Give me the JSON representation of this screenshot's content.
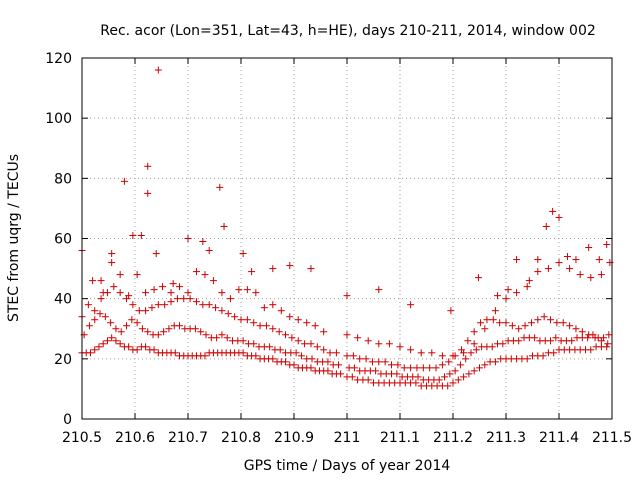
{
  "chart_data": {
    "type": "scatter",
    "title": "Rec. acor (Lon=351, Lat=43, h=HE), days 210-211, 2014, window 002",
    "xlabel": "GPS time / Days of year 2014",
    "ylabel": "STEC from uqrg / TECUs",
    "xlim": [
      210.5,
      211.5
    ],
    "ylim": [
      0,
      120
    ],
    "x_ticks": [
      210.5,
      210.6,
      210.7,
      210.8,
      210.9,
      211.0,
      211.1,
      211.2,
      211.3,
      211.4,
      211.5
    ],
    "x_tick_labels": [
      "210.5",
      "210.6",
      "210.7",
      "210.8",
      "210.9",
      "211",
      "211.1",
      "211.2",
      "211.3",
      "211.4",
      "211.5"
    ],
    "y_ticks": [
      0,
      20,
      40,
      60,
      80,
      100,
      120
    ],
    "y_tick_labels": [
      "0",
      "20",
      "40",
      "60",
      "80",
      "100",
      "120"
    ],
    "grid": true,
    "legend": "none",
    "marker_color": "#cc0000",
    "series": [
      {
        "x": [
          210.5,
          210.508,
          210.516,
          210.524,
          210.532,
          210.54,
          210.548,
          210.556,
          210.564,
          210.572,
          210.58,
          210.588,
          210.596,
          210.604,
          210.612,
          210.62,
          210.628,
          210.636,
          210.644,
          210.652,
          210.66,
          210.668,
          210.676,
          210.684,
          210.692,
          210.7,
          210.708,
          210.716,
          210.724,
          210.732,
          210.74,
          210.748,
          210.756,
          210.764,
          210.772,
          210.78,
          210.788,
          210.796,
          210.804,
          210.812,
          210.82,
          210.828,
          210.836,
          210.844,
          210.852,
          210.86,
          210.868,
          210.876,
          210.884,
          210.892,
          210.9,
          210.908,
          210.916,
          210.924,
          210.932,
          210.94,
          210.948,
          210.956,
          210.964,
          210.972,
          210.98,
          210.988,
          211.0,
          211.01,
          211.02,
          211.03,
          211.04,
          211.05,
          211.06,
          211.07,
          211.08,
          211.09,
          211.1,
          211.11,
          211.12,
          211.13,
          211.14,
          211.15,
          211.16,
          211.17,
          211.18,
          211.19,
          211.2,
          211.21,
          211.22,
          211.23,
          211.24,
          211.25,
          211.26,
          211.27,
          211.28,
          211.29,
          211.3,
          211.31,
          211.32,
          211.33,
          211.34,
          211.35,
          211.36,
          211.37,
          211.38,
          211.39,
          211.4,
          211.41,
          211.42,
          211.43,
          211.44,
          211.45,
          211.46,
          211.47,
          211.48,
          211.49
        ],
        "y": [
          22,
          22,
          22,
          23,
          24,
          25,
          26,
          27,
          26,
          25,
          24,
          24,
          23,
          23,
          24,
          24,
          23,
          23,
          22,
          22,
          22,
          22,
          22,
          21,
          21,
          21,
          21,
          21,
          21,
          21,
          22,
          22,
          22,
          22,
          22,
          22,
          22,
          22,
          22,
          21,
          21,
          21,
          20,
          20,
          20,
          20,
          19,
          19,
          19,
          18,
          18,
          17,
          17,
          17,
          17,
          16,
          16,
          16,
          16,
          15,
          15,
          15,
          14,
          14,
          13,
          13,
          13,
          12,
          12,
          12,
          12,
          12,
          12,
          12,
          12,
          12,
          11,
          11,
          11,
          11,
          11,
          11,
          12,
          13,
          14,
          15,
          16,
          17,
          18,
          19,
          19,
          20,
          20,
          20,
          20,
          20,
          20,
          21,
          21,
          21,
          22,
          22,
          23,
          23,
          23,
          23,
          23,
          23,
          23,
          24,
          24,
          24
        ]
      },
      {
        "x": [
          210.504,
          210.514,
          210.524,
          210.534,
          210.544,
          210.554,
          210.564,
          210.574,
          210.584,
          210.594,
          210.604,
          210.614,
          210.624,
          210.634,
          210.644,
          210.654,
          210.664,
          210.674,
          210.684,
          210.694,
          210.704,
          210.714,
          210.724,
          210.734,
          210.744,
          210.754,
          210.764,
          210.774,
          210.784,
          210.794,
          210.804,
          210.814,
          210.824,
          210.834,
          210.844,
          210.854,
          210.864,
          210.874,
          210.884,
          210.894,
          210.904,
          210.914,
          210.924,
          210.934,
          210.944,
          210.954,
          210.964,
          210.974,
          210.984,
          211.004,
          211.014,
          211.024,
          211.034,
          211.044,
          211.054,
          211.064,
          211.074,
          211.084,
          211.094,
          211.104,
          211.114,
          211.124,
          211.134,
          211.144,
          211.154,
          211.164,
          211.174,
          211.184,
          211.194,
          211.204,
          211.214,
          211.224,
          211.234,
          211.244,
          211.254,
          211.264,
          211.274,
          211.284,
          211.294,
          211.304,
          211.314,
          211.324,
          211.334,
          211.344,
          211.354,
          211.364,
          211.374,
          211.384,
          211.394,
          211.404,
          211.414,
          211.424,
          211.434,
          211.444,
          211.454,
          211.464,
          211.474,
          211.484,
          211.494
        ],
        "y": [
          28,
          31,
          33,
          35,
          34,
          32,
          30,
          29,
          31,
          33,
          32,
          30,
          29,
          28,
          28,
          29,
          30,
          31,
          31,
          30,
          30,
          30,
          29,
          28,
          27,
          27,
          28,
          27,
          26,
          26,
          26,
          25,
          25,
          24,
          24,
          24,
          23,
          23,
          22,
          22,
          22,
          21,
          20,
          20,
          19,
          19,
          19,
          18,
          18,
          17,
          17,
          16,
          16,
          16,
          16,
          15,
          15,
          15,
          15,
          14,
          14,
          14,
          14,
          13,
          13,
          13,
          13,
          14,
          15,
          16,
          18,
          20,
          22,
          23,
          24,
          24,
          24,
          25,
          25,
          26,
          26,
          26,
          27,
          27,
          27,
          26,
          26,
          26,
          27,
          26,
          26,
          26,
          27,
          27,
          27,
          28,
          27,
          27,
          28
        ]
      },
      {
        "x": [
          210.5,
          210.512,
          210.524,
          210.536,
          210.548,
          210.56,
          210.572,
          210.584,
          210.596,
          210.608,
          210.62,
          210.632,
          210.644,
          210.656,
          210.668,
          210.68,
          210.692,
          210.704,
          210.716,
          210.728,
          210.74,
          210.752,
          210.764,
          210.776,
          210.788,
          210.8,
          210.812,
          210.824,
          210.836,
          210.848,
          210.86,
          210.872,
          210.884,
          210.896,
          210.908,
          210.92,
          210.932,
          210.944,
          210.956,
          210.968,
          210.98,
          211.0,
          211.012,
          211.024,
          211.036,
          211.048,
          211.06,
          211.072,
          211.084,
          211.096,
          211.108,
          211.12,
          211.132,
          211.144,
          211.156,
          211.168,
          211.18,
          211.192,
          211.204,
          211.216,
          211.228,
          211.24,
          211.252,
          211.264,
          211.276,
          211.288,
          211.3,
          211.312,
          211.324,
          211.336,
          211.348,
          211.36,
          211.372,
          211.384,
          211.396,
          211.408,
          211.42,
          211.432,
          211.444,
          211.456,
          211.468,
          211.48,
          211.492
        ],
        "y": [
          34,
          38,
          36,
          40,
          42,
          44,
          42,
          40,
          38,
          36,
          36,
          37,
          38,
          38,
          39,
          40,
          40,
          40,
          39,
          38,
          38,
          37,
          36,
          35,
          34,
          33,
          33,
          32,
          31,
          31,
          30,
          29,
          28,
          27,
          26,
          25,
          25,
          24,
          23,
          22,
          22,
          21,
          21,
          20,
          20,
          19,
          19,
          19,
          18,
          18,
          17,
          17,
          17,
          17,
          17,
          17,
          18,
          19,
          21,
          23,
          26,
          29,
          32,
          33,
          33,
          32,
          32,
          31,
          30,
          31,
          32,
          33,
          34,
          33,
          32,
          32,
          31,
          30,
          29,
          28,
          27,
          26,
          25
        ]
      },
      {
        "x": [
          210.5,
          210.52,
          210.54,
          210.556,
          210.572,
          210.588,
          210.604,
          210.62,
          210.636,
          210.652,
          210.668,
          210.684,
          210.7,
          210.716,
          210.732,
          210.748,
          210.764,
          210.78,
          210.796,
          210.812,
          210.828,
          210.844,
          210.86,
          210.876,
          210.892,
          210.908,
          210.924,
          210.94,
          210.956,
          211.0,
          211.02,
          211.04,
          211.06,
          211.08,
          211.1,
          211.12,
          211.14,
          211.16,
          211.18,
          211.2,
          211.22,
          211.24,
          211.26,
          211.28,
          211.3,
          211.32,
          211.34,
          211.36,
          211.38,
          211.4,
          211.42,
          211.44,
          211.46,
          211.48,
          211.496
        ],
        "y": [
          56,
          46,
          42,
          52,
          48,
          41,
          48,
          42,
          43,
          44,
          42,
          44,
          42,
          49,
          48,
          46,
          42,
          40,
          43,
          43,
          42,
          37,
          38,
          36,
          34,
          33,
          32,
          31,
          29,
          28,
          27,
          26,
          25,
          25,
          24,
          23,
          22,
          22,
          21,
          21,
          22,
          25,
          30,
          36,
          40,
          42,
          44,
          49,
          50,
          52,
          50,
          48,
          47,
          48,
          52
        ]
      },
      {
        "x": [
          210.536,
          210.556,
          210.58,
          210.596,
          210.612,
          210.624,
          210.64,
          210.672,
          210.7,
          210.728,
          210.74,
          210.76,
          210.804,
          210.82,
          210.86,
          210.892,
          210.932,
          211.0,
          211.06,
          211.12,
          211.196,
          211.248,
          211.284,
          211.304,
          211.32,
          211.344,
          211.36,
          211.376,
          211.388,
          211.4,
          211.416,
          211.432,
          211.456,
          211.476,
          211.49
        ],
        "y": [
          46,
          55,
          79,
          61,
          61,
          84,
          55,
          45,
          60,
          59,
          56,
          77,
          55,
          49,
          50,
          51,
          50,
          41,
          43,
          38,
          36,
          47,
          41,
          43,
          53,
          46,
          53,
          64,
          69,
          67,
          54,
          53,
          57,
          53,
          58
        ]
      },
      {
        "x": [
          210.624,
          210.644,
          210.768
        ],
        "y": [
          75,
          116,
          64
        ]
      }
    ]
  }
}
